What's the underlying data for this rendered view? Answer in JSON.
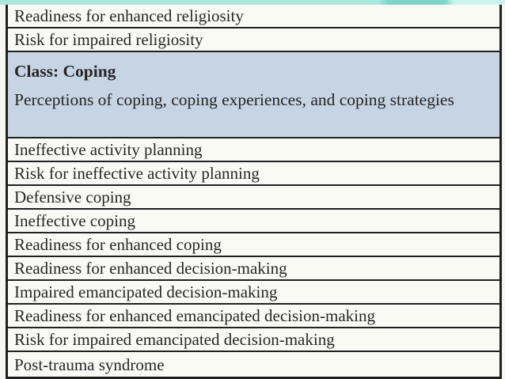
{
  "colors": {
    "page_bg": "#f7f7f2",
    "row_bg": "#fafaf5",
    "header_bg": "#c6d4e3",
    "border": "#202020",
    "text": "#262626",
    "strip_teal": "#a9e7df",
    "strip_teal_dark": "#7ed3cb",
    "strip_teal_light": "#ccf4ee"
  },
  "table": {
    "rows": [
      {
        "type": "diagnosis",
        "label": "Readiness for enhanced religiosity"
      },
      {
        "type": "diagnosis",
        "label": "Risk for impaired religiosity"
      },
      {
        "type": "class_header",
        "title": "Class: Coping",
        "description": "Perceptions of coping, coping experiences, and coping strategies"
      },
      {
        "type": "diagnosis",
        "label": "Ineffective activity planning"
      },
      {
        "type": "diagnosis",
        "label": "Risk for ineffective activity planning"
      },
      {
        "type": "diagnosis",
        "label": "Defensive coping"
      },
      {
        "type": "diagnosis",
        "label": "Ineffective coping"
      },
      {
        "type": "diagnosis",
        "label": "Readiness for enhanced coping"
      },
      {
        "type": "diagnosis",
        "label": "Readiness for enhanced decision-making"
      },
      {
        "type": "diagnosis",
        "label": "Impaired emancipated decision-making"
      },
      {
        "type": "diagnosis",
        "label": "Readiness for enhanced emancipated decision-making"
      },
      {
        "type": "diagnosis",
        "label": "Risk for impaired emancipated decision-making"
      },
      {
        "type": "diagnosis",
        "label": "Post-trauma syndrome"
      }
    ]
  }
}
